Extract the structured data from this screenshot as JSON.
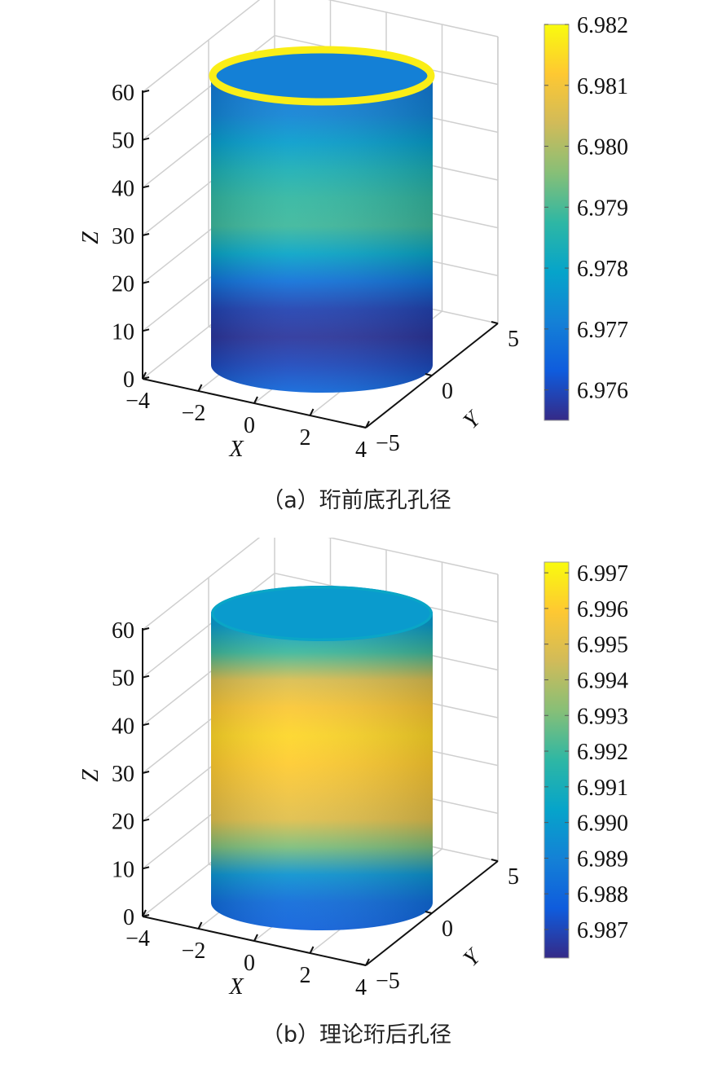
{
  "chart_data": [
    {
      "type": "surface",
      "caption": "（a）珩前底孔孔径",
      "xlabel": "X",
      "ylabel": "Y",
      "zlabel": "Z",
      "xticks": [
        "−4",
        "−2",
        "0",
        "2",
        "4"
      ],
      "yticks": [
        "−5",
        "0",
        "5"
      ],
      "zticks": [
        "0",
        "10",
        "20",
        "30",
        "40",
        "50",
        "60"
      ],
      "xlim": [
        -4,
        4
      ],
      "ylim": [
        -5,
        5
      ],
      "zlim": [
        0,
        60
      ],
      "colorbar": {
        "min": 6.9755,
        "max": 6.982,
        "ticks": [
          "6.976",
          "6.977",
          "6.978",
          "6.979",
          "6.980",
          "6.981",
          "6.982"
        ]
      },
      "profile": {
        "z": [
          0,
          5,
          10,
          15,
          20,
          25,
          30,
          35,
          40,
          45,
          50,
          55,
          58,
          60,
          62
        ],
        "value": [
          6.9766,
          6.976,
          6.9757,
          6.9759,
          6.9768,
          6.978,
          6.9789,
          6.9788,
          6.9784,
          6.9778,
          6.9772,
          6.977,
          6.9771,
          6.9785,
          6.9818
        ]
      }
    },
    {
      "type": "surface",
      "caption": "（b）理论珩后孔径",
      "xlabel": "X",
      "ylabel": "Y",
      "zlabel": "Z",
      "xticks": [
        "−4",
        "−2",
        "0",
        "2",
        "4"
      ],
      "yticks": [
        "−5",
        "0",
        "5"
      ],
      "zticks": [
        "0",
        "10",
        "20",
        "30",
        "40",
        "50",
        "60"
      ],
      "xlim": [
        -4,
        4
      ],
      "ylim": [
        -5,
        5
      ],
      "zlim": [
        0,
        60
      ],
      "colorbar": {
        "min": 6.9862,
        "max": 6.9973,
        "ticks": [
          "6.987",
          "6.988",
          "6.989",
          "6.990",
          "6.991",
          "6.992",
          "6.993",
          "6.994",
          "6.995",
          "6.996",
          "6.997"
        ]
      },
      "profile": {
        "z": [
          0,
          5,
          10,
          15,
          20,
          25,
          30,
          35,
          40,
          45,
          50,
          55,
          60,
          62
        ],
        "value": [
          6.9878,
          6.9882,
          6.9897,
          6.993,
          6.995,
          6.9955,
          6.996,
          6.9963,
          6.9958,
          6.9948,
          6.992,
          6.99,
          6.9902,
          6.9905
        ]
      }
    }
  ],
  "colors": {
    "parula": [
      "#352A87",
      "#0F5CDD",
      "#1481D6",
      "#06A4CA",
      "#2EB7A4",
      "#87BF77",
      "#D1BB59",
      "#FEC832",
      "#F9FB0E"
    ],
    "axes": "#111111",
    "grid": "#cfcfcf"
  }
}
